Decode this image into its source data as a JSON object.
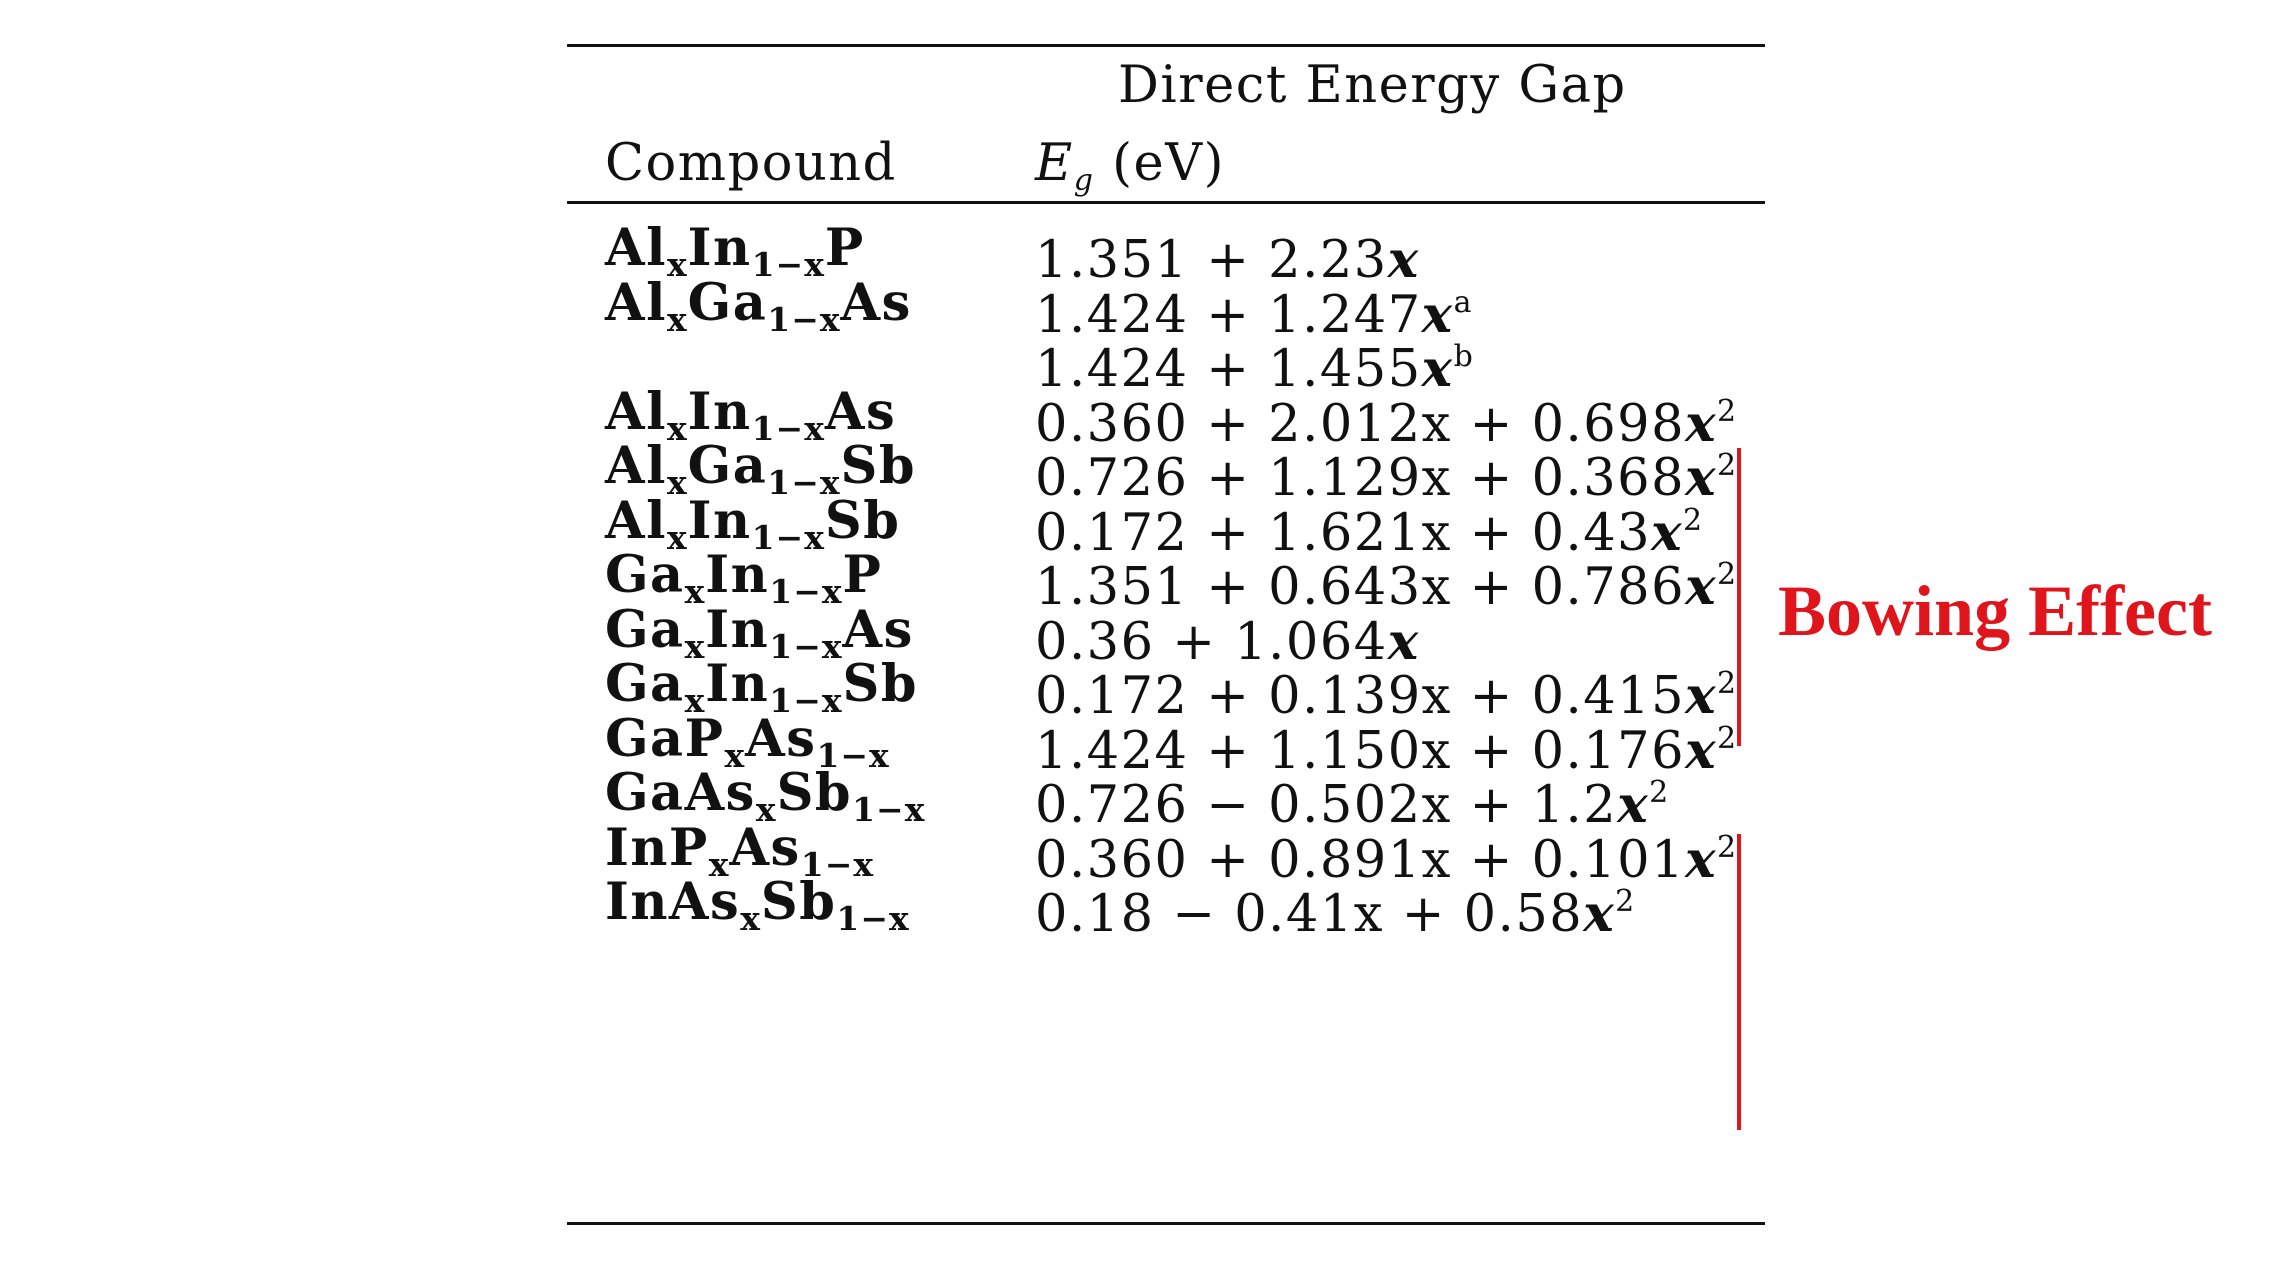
{
  "table": {
    "header": {
      "energy_gap_label": "Direct Energy Gap",
      "compound_label": "Compound",
      "eg_symbol": "E",
      "eg_subscript": "g",
      "eg_unit": " (eV)"
    },
    "rows": [
      {
        "el1": "Al",
        "el1_sub": "x",
        "el2": "In",
        "el2_sub": "1−x",
        "el3": "P",
        "el3_sub": "",
        "expr": "1.351 + 2.23",
        "var": "x",
        "sup": ""
      },
      {
        "el1": "Al",
        "el1_sub": "x",
        "el2": "Ga",
        "el2_sub": "1−x",
        "el3": "As",
        "el3_sub": "",
        "expr": "1.424 + 1.247",
        "var": "x",
        "sup": "a"
      },
      {
        "el1": "",
        "el1_sub": "",
        "el2": "",
        "el2_sub": "",
        "el3": "",
        "el3_sub": "",
        "expr": "1.424 + 1.455",
        "var": "x",
        "sup": "b"
      },
      {
        "el1": "Al",
        "el1_sub": "x",
        "el2": "In",
        "el2_sub": "1−x",
        "el3": "As",
        "el3_sub": "",
        "expr": "0.360 + 2.012x + 0.698",
        "var": "x",
        "sup": "2"
      },
      {
        "el1": "Al",
        "el1_sub": "x",
        "el2": "Ga",
        "el2_sub": "1−x",
        "el3": "Sb",
        "el3_sub": "",
        "expr": "0.726 + 1.129x + 0.368",
        "var": "x",
        "sup": "2"
      },
      {
        "el1": "Al",
        "el1_sub": "x",
        "el2": "In",
        "el2_sub": "1−x",
        "el3": "Sb",
        "el3_sub": "",
        "expr": "0.172 + 1.621x + 0.43",
        "var": "x",
        "sup": "2"
      },
      {
        "el1": "Ga",
        "el1_sub": "x",
        "el2": "In",
        "el2_sub": "1−x",
        "el3": "P",
        "el3_sub": "",
        "expr": "1.351 + 0.643x + 0.786",
        "var": "x",
        "sup": "2"
      },
      {
        "el1": "Ga",
        "el1_sub": "x",
        "el2": "In",
        "el2_sub": "1−x",
        "el3": "As",
        "el3_sub": "",
        "expr": "0.36 + 1.064",
        "var": "x",
        "sup": ""
      },
      {
        "el1": "Ga",
        "el1_sub": "x",
        "el2": "In",
        "el2_sub": "1−x",
        "el3": "Sb",
        "el3_sub": "",
        "expr": "0.172 + 0.139x + 0.415",
        "var": "x",
        "sup": "2"
      },
      {
        "el1": "GaP",
        "el1_sub": "x",
        "el2": "As",
        "el2_sub": "1−x",
        "el3": "",
        "el3_sub": "",
        "expr": "1.424 + 1.150x + 0.176",
        "var": "x",
        "sup": "2"
      },
      {
        "el1": "GaAs",
        "el1_sub": "x",
        "el2": "Sb",
        "el2_sub": "1−x",
        "el3": "",
        "el3_sub": "",
        "expr": "0.726 − 0.502x + 1.2",
        "var": "x",
        "sup": "2"
      },
      {
        "el1": "InP",
        "el1_sub": "x",
        "el2": "As",
        "el2_sub": "1−x",
        "el3": "",
        "el3_sub": "",
        "expr": "0.360 + 0.891x + 0.101",
        "var": "x",
        "sup": "2"
      },
      {
        "el1": "InAs",
        "el1_sub": "x",
        "el2": "Sb",
        "el2_sub": "1−x",
        "el3": "",
        "el3_sub": "",
        "expr": "0.18 − 0.41x + 0.58",
        "var": "x",
        "sup": "2"
      }
    ]
  },
  "annotation": {
    "label": "Bowing Effect",
    "color": "#e0141b"
  }
}
